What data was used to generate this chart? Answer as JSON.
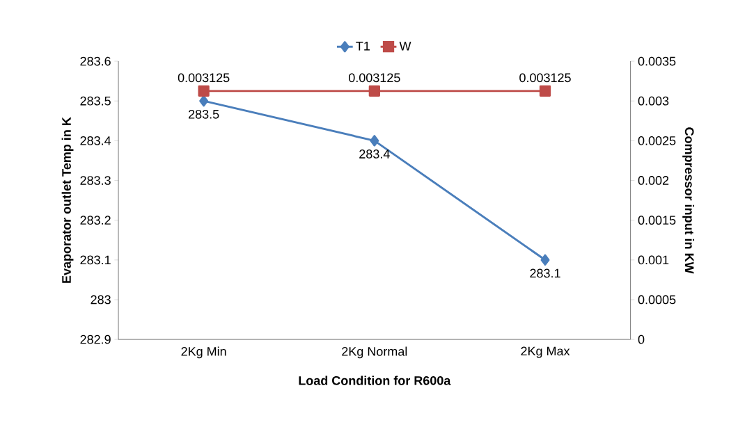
{
  "chart_data": {
    "type": "line",
    "xlabel": "Load Condition for R600a",
    "ylabel": "Evaporator outlet Temp in K",
    "y2label": "Compressor    input in KW",
    "categories": [
      "2Kg Min",
      "2Kg Normal",
      "2Kg Max"
    ],
    "series": [
      {
        "name": "T1",
        "color": "#4a7ebb",
        "marker": "diamond",
        "values": [
          283.5,
          283.4,
          283.1
        ]
      },
      {
        "name": "W",
        "color": "#be4b48",
        "marker": "square",
        "axis": "y2",
        "values": [
          0.003125,
          0.003125,
          0.003125
        ]
      }
    ],
    "ylim": [
      282.9,
      283.6
    ],
    "yticks": [
      282.9,
      283,
      283.1,
      283.2,
      283.3,
      283.4,
      283.5,
      283.6
    ],
    "y2lim": [
      0,
      0.0035
    ],
    "y2ticks": [
      0,
      0.0005,
      0.001,
      0.0015,
      0.002,
      0.0025,
      0.003,
      0.0035
    ],
    "data_labels": true,
    "legend": "top",
    "grid": false,
    "line_style": "solid"
  }
}
